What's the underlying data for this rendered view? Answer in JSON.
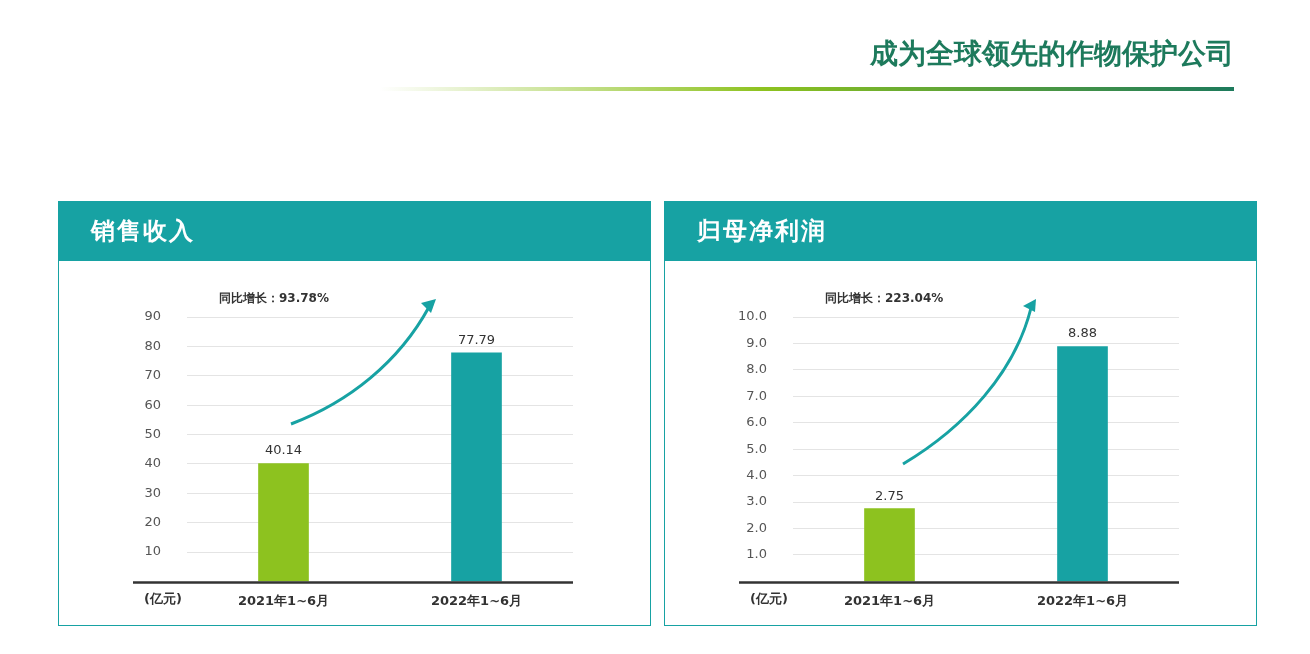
{
  "chart_data": [
    {
      "type": "other",
      "title": "成为全球领先的作物保护公司"
    },
    {
      "type": "bar",
      "title": "销售收入",
      "ylabel": "(亿元)",
      "categories": [
        "2021年1~6月",
        "2022年1~6月"
      ],
      "values": [
        40.14,
        77.79
      ],
      "colors": [
        "#8dc21f",
        "#17a2a3"
      ],
      "ylim": [
        0,
        90
      ],
      "yticks": [
        10,
        20,
        30,
        40,
        50,
        60,
        70,
        80,
        90
      ],
      "grid": "y",
      "data_labels": true,
      "annotations": [
        "同比增长：93.78%"
      ]
    },
    {
      "type": "bar",
      "title": "归母净利润",
      "ylabel": "(亿元)",
      "categories": [
        "2021年1~6月",
        "2022年1~6月"
      ],
      "values": [
        2.75,
        8.88
      ],
      "colors": [
        "#8dc21f",
        "#17a2a3"
      ],
      "ylim": [
        0,
        10
      ],
      "yticks": [
        {
          "value": 1,
          "label": "1.0"
        },
        {
          "value": 2,
          "label": "2.0"
        },
        {
          "value": 3,
          "label": "3.0"
        },
        {
          "value": 4,
          "label": "4.0"
        },
        {
          "value": 5,
          "label": "5.0"
        },
        {
          "value": 6,
          "label": "6.0"
        },
        {
          "value": 7,
          "label": "7.0"
        },
        {
          "value": 8,
          "label": "8.0"
        },
        {
          "value": 9,
          "label": "9.0"
        },
        {
          "value": 10,
          "label": "10.0"
        }
      ],
      "grid": "y",
      "data_labels": true,
      "annotations": [
        "同比增长：223.04%"
      ]
    }
  ]
}
